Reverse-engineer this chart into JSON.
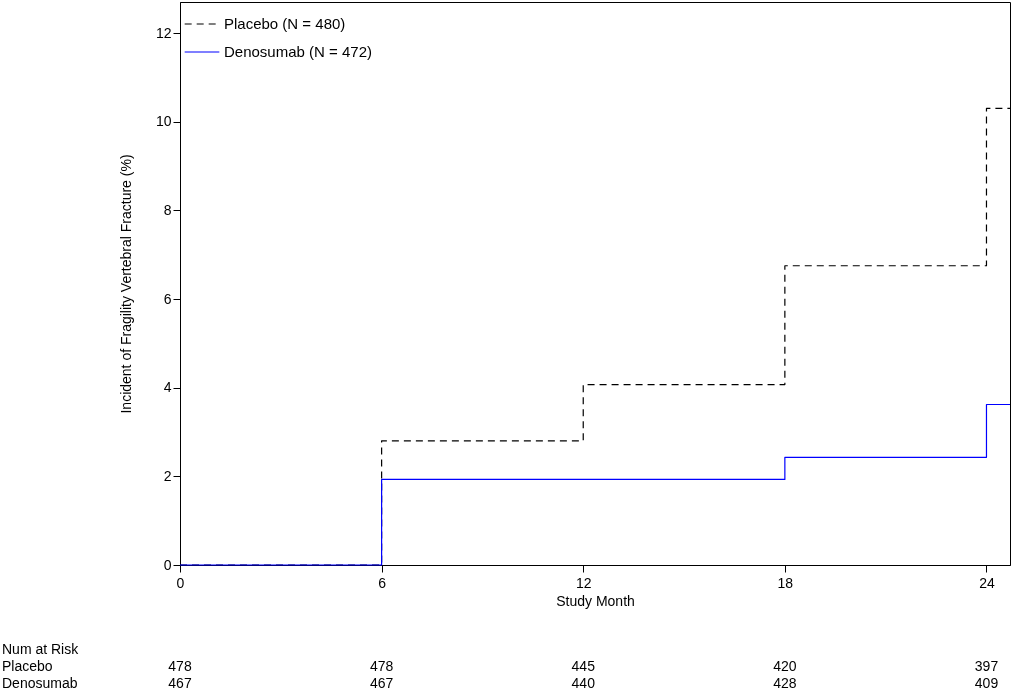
{
  "chart_data": {
    "type": "step",
    "xlabel": "Study Month",
    "ylabel": "Incident of Fragility Vertebral Fracture (%)",
    "x": [
      0,
      6,
      12,
      18,
      24,
      24.7
    ],
    "xlim": [
      0,
      24.7
    ],
    "xticks": [
      0,
      6,
      12,
      18,
      24
    ],
    "ylim": [
      0,
      12.7
    ],
    "yticks": [
      0,
      2,
      4,
      6,
      8,
      10,
      12
    ],
    "legend": "top left",
    "series": [
      {
        "name": "Placebo (N = 480)",
        "color": "#000000",
        "line_style": "dashed",
        "values": [
          0,
          2.8,
          4.07,
          6.75,
          10.3,
          10.3
        ]
      },
      {
        "name": "Denosumab (N = 472)",
        "color": "#0000ff",
        "line_style": "solid",
        "values": [
          0,
          1.93,
          1.93,
          2.43,
          3.62,
          3.62
        ]
      }
    ],
    "annotations": [
      "Num at Risk",
      "Placebo",
      "478",
      "478",
      "445",
      "420",
      "397",
      "Denosumab",
      "467",
      "467",
      "440",
      "428",
      "409"
    ]
  }
}
